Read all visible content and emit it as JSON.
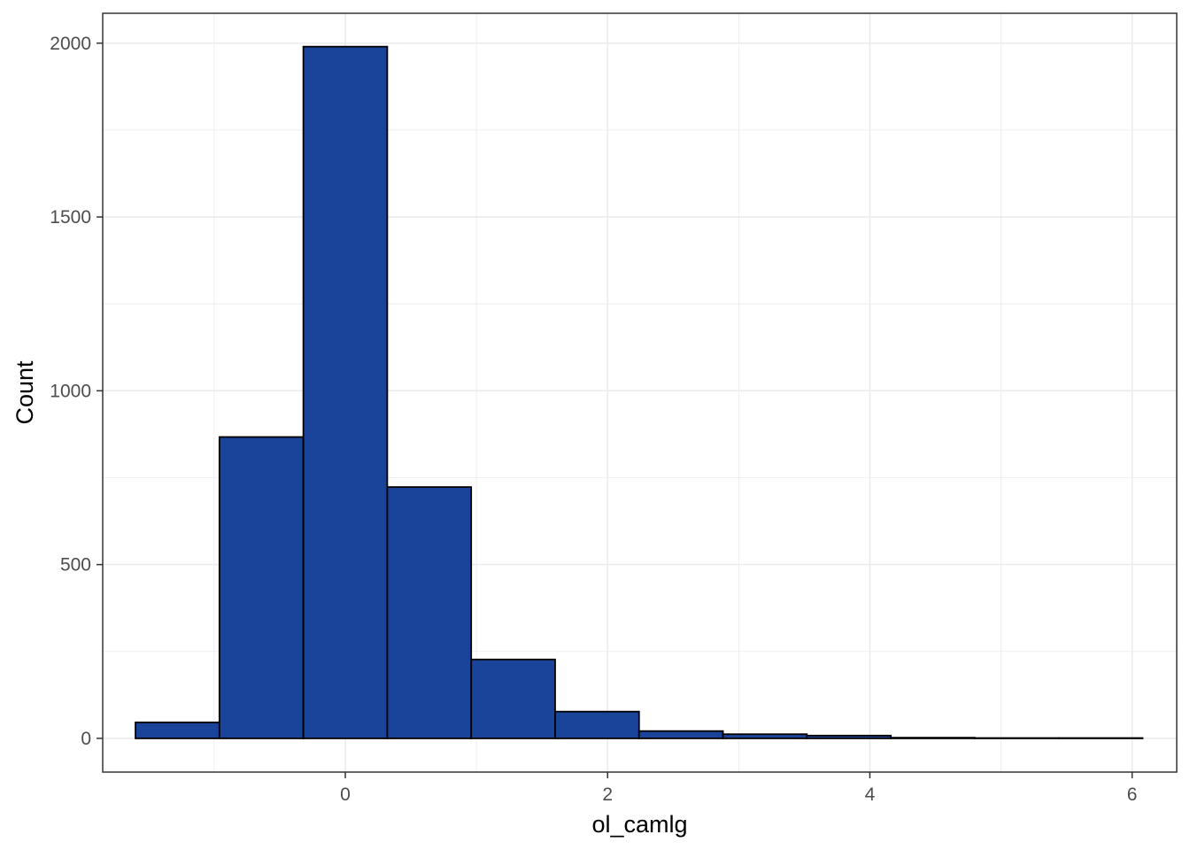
{
  "chart_data": {
    "type": "bar",
    "subtype": "histogram",
    "title": "",
    "xlabel": "ol_camlg",
    "ylabel": "Count",
    "xlim": [
      -1.85,
      6.34
    ],
    "ylim": [
      -97,
      2086
    ],
    "x_ticks": [
      0,
      2,
      4,
      6
    ],
    "y_ticks": [
      0,
      500,
      1000,
      1500,
      2000
    ],
    "bin_edges": [
      -1.6,
      -0.96,
      -0.32,
      0.32,
      0.96,
      1.6,
      2.24,
      2.88,
      3.52,
      4.16,
      4.8,
      5.44,
      6.08
    ],
    "values": [
      46,
      867,
      1990,
      723,
      227,
      77,
      21,
      12,
      8,
      2,
      1,
      1
    ],
    "grid": true,
    "legend": "none",
    "colors": {
      "fill": "#19449A",
      "border": "#000000",
      "grid": "#EBEBEB",
      "panel_border": "#333333",
      "tick_text": "#4D4D4D"
    }
  }
}
